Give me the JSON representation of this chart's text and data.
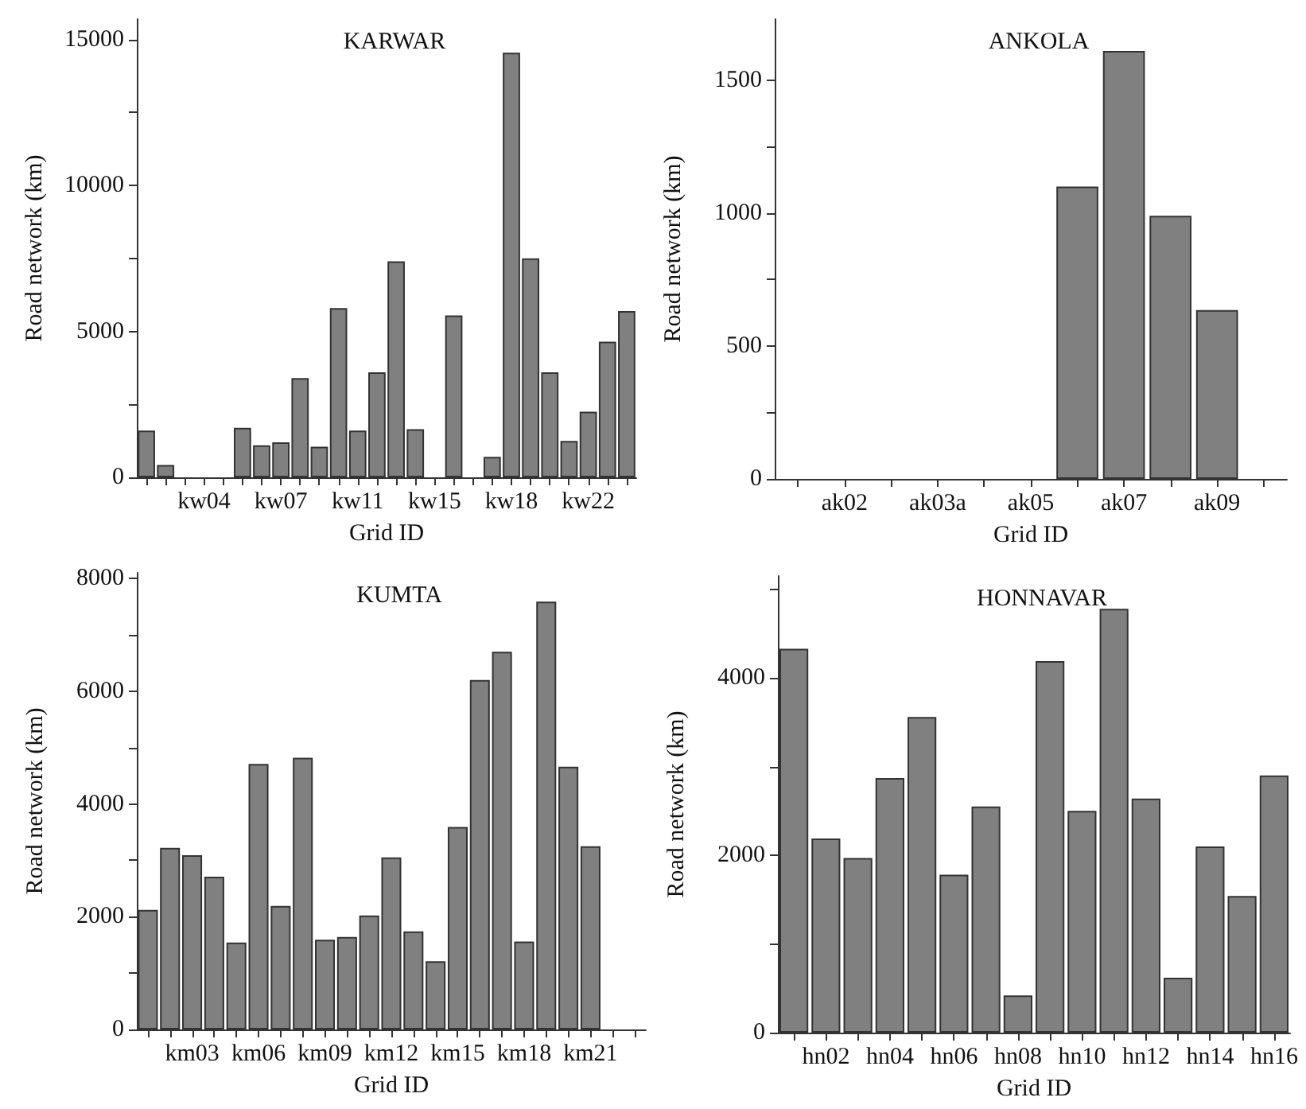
{
  "chart_data": [
    {
      "type": "bar",
      "title": "KARWAR",
      "xlabel": "Grid ID",
      "ylabel": "Road network (km)",
      "categories": [
        null,
        null,
        null,
        "kw04",
        null,
        null,
        null,
        "kw07",
        null,
        null,
        null,
        "kw11",
        null,
        null,
        null,
        "kw15",
        null,
        null,
        null,
        "kw18",
        null,
        null,
        null,
        "kw22",
        null,
        null
      ],
      "values": [
        1600,
        420,
        0,
        0,
        0,
        1700,
        1100,
        1200,
        3400,
        1050,
        5800,
        1600,
        3600,
        7400,
        1650,
        0,
        5550,
        0,
        700,
        14550,
        7500,
        3600,
        1250,
        2250,
        4650,
        5700
      ],
      "color": "#808080",
      "ylim": [
        0,
        15700
      ],
      "yticks": [
        0,
        {
          "value": 2500,
          "label": null
        },
        5000,
        {
          "value": 7500,
          "label": null
        },
        10000,
        {
          "value": 12500,
          "label": null
        },
        15000
      ],
      "grid": false
    },
    {
      "type": "bar",
      "title": "ANKOLA",
      "xlabel": "Grid ID",
      "ylabel": "Road network (km)",
      "categories": [
        null,
        "ak02",
        null,
        "ak03a",
        null,
        "ak05",
        null,
        "ak07",
        null,
        "ak09",
        null
      ],
      "values": [
        0,
        0,
        0,
        0,
        0,
        0,
        1100,
        1610,
        990,
        635,
        null
      ],
      "color": "#808080",
      "ylim": [
        0,
        1730
      ],
      "yticks": [
        0,
        {
          "value": 250,
          "label": null
        },
        500,
        {
          "value": 750,
          "label": null
        },
        1000,
        {
          "value": 1250,
          "label": null
        },
        1500
      ],
      "grid": false
    },
    {
      "type": "bar",
      "title": "KUMTA",
      "xlabel": "Grid ID",
      "ylabel": "Road network (km)",
      "categories": [
        null,
        null,
        "km03",
        null,
        null,
        "km06",
        null,
        null,
        "km09",
        null,
        null,
        "km12",
        null,
        null,
        "km15",
        null,
        null,
        "km18",
        null,
        null,
        "km21",
        null,
        null
      ],
      "values": [
        2120,
        3220,
        3090,
        2710,
        1540,
        4710,
        2190,
        4820,
        1590,
        1640,
        2020,
        3050,
        1740,
        1210,
        3590,
        6200,
        6700,
        1560,
        7590,
        4660,
        3250,
        null,
        null
      ],
      "color": "#808080",
      "ylim": [
        0,
        8100
      ],
      "yticks": [
        0,
        {
          "value": 1000,
          "label": null
        },
        2000,
        {
          "value": 3000,
          "label": null
        },
        4000,
        {
          "value": 5000,
          "label": null
        },
        6000,
        {
          "value": 7000,
          "label": null
        },
        8000
      ],
      "grid": false
    },
    {
      "type": "bar",
      "title": "HONNAVAR",
      "xlabel": "Grid ID",
      "ylabel": "Road network (km)",
      "categories": [
        null,
        "hn02",
        null,
        "hn04",
        null,
        "hn06",
        null,
        "hn08",
        null,
        "hn10",
        null,
        "hn12",
        null,
        "hn14",
        null,
        "hn16"
      ],
      "values": [
        4330,
        2190,
        1970,
        2870,
        3560,
        1780,
        2550,
        420,
        4190,
        2500,
        4780,
        2640,
        620,
        2100,
        1540,
        2900
      ],
      "color": "#808080",
      "ylim": [
        0,
        5150
      ],
      "yticks": [
        0,
        {
          "value": 1000,
          "label": null
        },
        2000,
        {
          "value": 3000,
          "label": null
        },
        4000,
        {
          "value": 5000,
          "label": null
        }
      ],
      "grid": false
    }
  ]
}
